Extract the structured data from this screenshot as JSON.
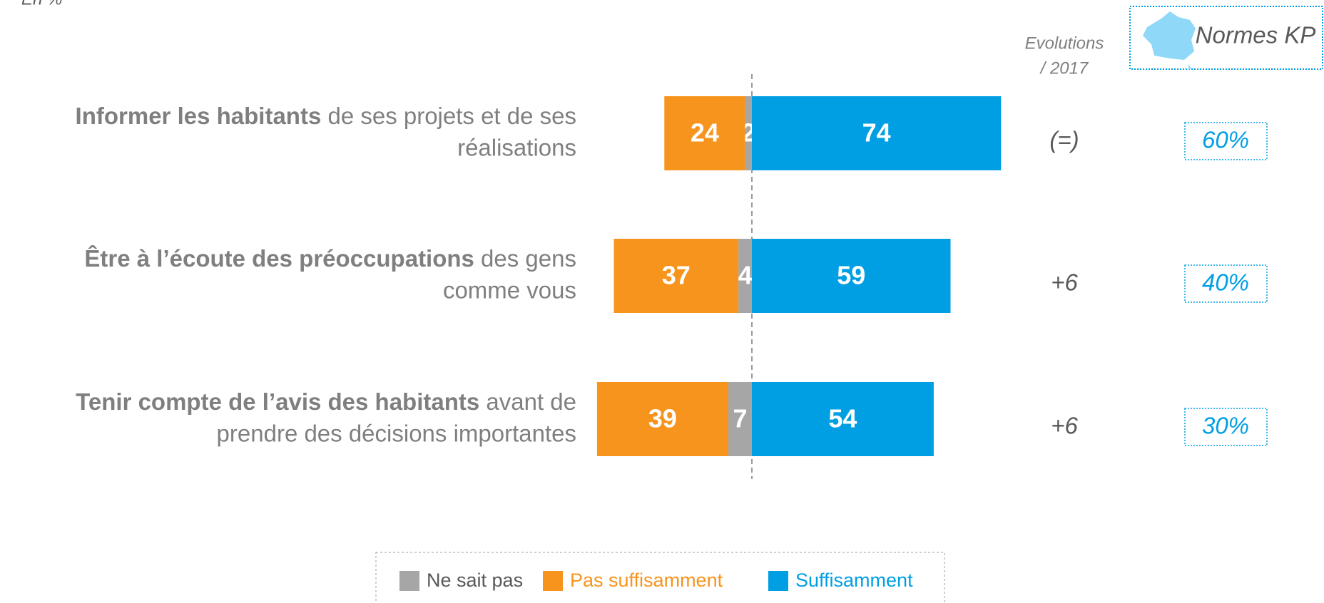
{
  "chart_data": {
    "type": "diverging_bar",
    "subtitle": "En %",
    "categories": [
      {
        "bold": "Informer les habitants",
        "line1": " de ses projets et de ses",
        "line2": "réalisations"
      },
      {
        "bold": "Être à l’écoute des préoccupations",
        "line1": " des gens",
        "line2": "comme vous"
      },
      {
        "bold": "Tenir compte de l’avis des habitants",
        "line1": " avant de",
        "line2": "prendre des décisions importantes"
      }
    ],
    "series": [
      {
        "name": "Ne sait pas",
        "color": "#a6a6a6",
        "label_color": "#595959",
        "side": "left",
        "values": [
          2,
          4,
          7
        ]
      },
      {
        "name": "Pas suffisamment",
        "color": "#f7941d",
        "label_color": "#f7941d",
        "side": "left",
        "values": [
          24,
          37,
          39
        ]
      },
      {
        "name": "Suffisamment",
        "color": "#009fe3",
        "label_color": "#009fe3",
        "side": "right",
        "values": [
          74,
          59,
          54
        ]
      }
    ],
    "evolution": {
      "title_line1": "Evolutions",
      "title_line2": "/ 2017",
      "values": [
        "(=)",
        "+6",
        "+6"
      ]
    },
    "norms": {
      "title": "Normes KP",
      "values": [
        "60%",
        "40%",
        "30%"
      ]
    }
  }
}
